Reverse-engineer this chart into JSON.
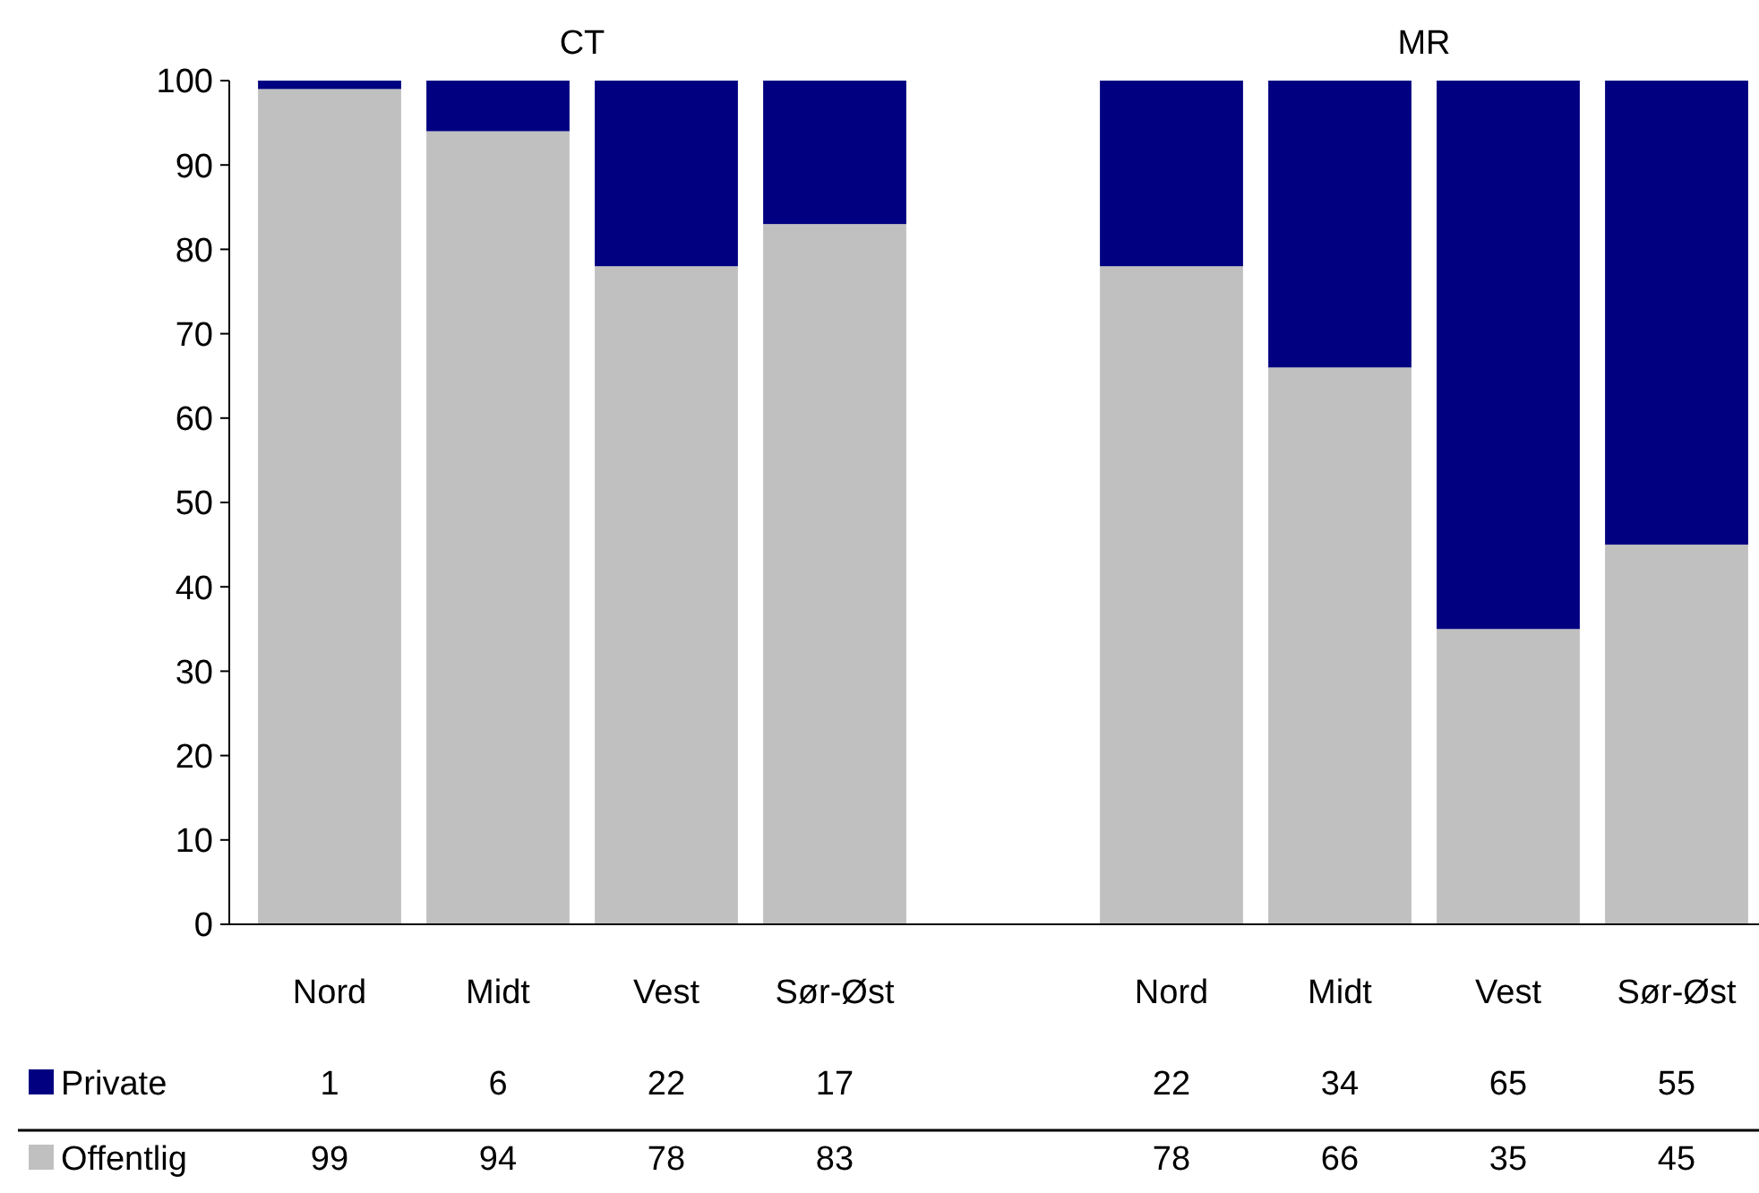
{
  "chart_data": {
    "type": "bar",
    "stacked": true,
    "categories": [
      "Nord",
      "Midt",
      "Vest",
      "Sør-Øst",
      null,
      "Nord",
      "Midt",
      "Vest",
      "Sør-Øst"
    ],
    "series": [
      {
        "name": "Offentlig",
        "color": "#c0c0c0",
        "values": [
          99,
          94,
          78,
          83,
          null,
          78,
          66,
          35,
          45
        ]
      },
      {
        "name": "Private",
        "color": "#000080",
        "values": [
          1,
          6,
          22,
          17,
          null,
          22,
          34,
          65,
          55
        ]
      }
    ],
    "ylim": [
      0,
      100
    ],
    "yticks": [
      0,
      10,
      20,
      30,
      40,
      50,
      60,
      70,
      80,
      90,
      100
    ],
    "grid": false,
    "legend": "bottom",
    "data_labels": true,
    "annotations": [
      "CT",
      "MR"
    ]
  }
}
